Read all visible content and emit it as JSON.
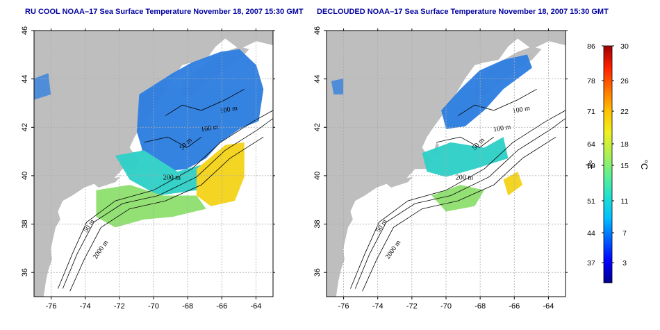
{
  "panels": [
    {
      "title": "RU COOL NOAA–17 Sea Surface Temperature November 18, 2007 15:30 GMT",
      "x_ticks": [
        "-76",
        "-74",
        "-72",
        "-70",
        "-68",
        "-66",
        "-64"
      ],
      "y_ticks": [
        "36",
        "38",
        "40",
        "42",
        "44",
        "46"
      ],
      "contour_labels": [
        "100 m",
        "100 m",
        "50 m",
        "200 m",
        "50 m",
        "2000 m"
      ]
    },
    {
      "title": "DECLOUDED NOAA–17 Sea Surface Temperature November 18, 2007 15:30 GMT",
      "x_ticks": [
        "-76",
        "-74",
        "-72",
        "-70",
        "-68",
        "-66",
        "-64"
      ],
      "y_ticks": [
        "36",
        "38",
        "40",
        "42",
        "44",
        "46"
      ],
      "contour_labels": [
        "100 m",
        "100 m",
        "50 m",
        "200 m",
        "50 m",
        "2000 m"
      ]
    }
  ],
  "colorbar": {
    "fahrenheit_ticks": [
      "86",
      "78",
      "71",
      "64",
      "59",
      "51",
      "44",
      "37"
    ],
    "celsius_ticks": [
      "30",
      "26",
      "22",
      "18",
      "15",
      "11",
      "7",
      "3"
    ],
    "fahrenheit_unit": "°F",
    "celsius_unit": "°C",
    "colors": [
      "#00008f",
      "#0000ff",
      "#0060ff",
      "#00c0ff",
      "#20e0d0",
      "#60f090",
      "#b0f050",
      "#f0f020",
      "#ffc000",
      "#ff7000",
      "#ff2000",
      "#a00000"
    ]
  },
  "colors": {
    "land": "#bebebe",
    "cold_water": "#2f7fe0",
    "mid_water": "#30d0c8",
    "green_water": "#90e070",
    "warm_water": "#f4d41c",
    "title": "#0000a0"
  }
}
